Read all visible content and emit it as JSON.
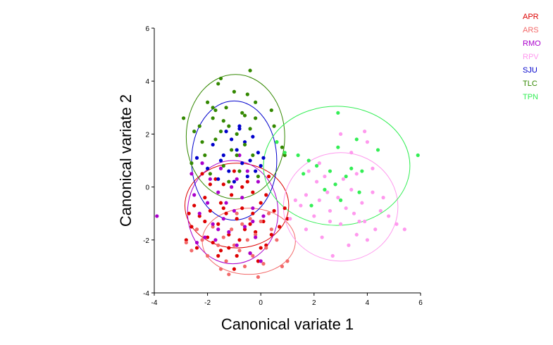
{
  "chart_data": {
    "type": "scatter",
    "title": "",
    "xlabel": "Canonical variate 1",
    "ylabel": "Canonical variate 2",
    "xlim": [
      -4,
      6
    ],
    "ylim": [
      -4,
      6
    ],
    "xticks": [
      "-4",
      "-2",
      "0",
      "2",
      "4",
      "6"
    ],
    "yticks": [
      "-4",
      "-2",
      "0",
      "2",
      "4",
      "6"
    ],
    "grid": false,
    "legend_position": "top-right",
    "series": [
      {
        "name": "APR",
        "color": "#dd0000",
        "ellipse": {
          "cx": -0.9,
          "cy": -0.7,
          "rx": 1.95,
          "ry": 1.6
        },
        "points": [
          [
            -2.8,
            -2.0
          ],
          [
            -2.6,
            -1.5
          ],
          [
            -2.5,
            -0.7
          ],
          [
            -2.4,
            -2.3
          ],
          [
            -2.3,
            -1.1
          ],
          [
            -2.2,
            0.5
          ],
          [
            -2.1,
            -0.4
          ],
          [
            -2.0,
            -1.9
          ],
          [
            -1.9,
            -0.9
          ],
          [
            -1.8,
            -2.1
          ],
          [
            -1.7,
            0.3
          ],
          [
            -1.6,
            -1.4
          ],
          [
            -1.5,
            -0.6
          ],
          [
            -1.5,
            -2.4
          ],
          [
            -1.4,
            0.1
          ],
          [
            -1.3,
            -1.0
          ],
          [
            -1.2,
            -1.8
          ],
          [
            -1.1,
            -0.3
          ],
          [
            -1.0,
            -3.1
          ],
          [
            -1.0,
            0.6
          ],
          [
            -0.9,
            -1.2
          ],
          [
            -0.8,
            -2.0
          ],
          [
            -0.7,
            -0.8
          ],
          [
            -0.6,
            -1.6
          ],
          [
            -0.5,
            0.2
          ],
          [
            -0.4,
            -2.5
          ],
          [
            -0.3,
            -1.0
          ],
          [
            -0.3,
            -0.2
          ],
          [
            -0.2,
            -1.7
          ],
          [
            -0.1,
            -2.8
          ],
          [
            0.0,
            -0.6
          ],
          [
            0.1,
            -1.3
          ],
          [
            0.2,
            -2.2
          ],
          [
            0.3,
            0.4
          ],
          [
            0.4,
            -1.8
          ],
          [
            0.5,
            -0.9
          ],
          [
            0.7,
            -1.5
          ],
          [
            0.9,
            -0.8
          ],
          [
            1.0,
            -1.2
          ],
          [
            -2.1,
            -1.3
          ],
          [
            -1.9,
            0.1
          ],
          [
            -1.6,
            -2.6
          ],
          [
            -1.2,
            -2.3
          ],
          [
            -0.7,
            0.0
          ],
          [
            -0.4,
            -1.4
          ],
          [
            0.0,
            -2.3
          ],
          [
            0.2,
            -0.3
          ],
          [
            -2.7,
            -1.0
          ],
          [
            -1.4,
            -0.8
          ],
          [
            -0.9,
            -2.6
          ]
        ]
      },
      {
        "name": "ARS",
        "color": "#f36a6a",
        "ellipse": {
          "cx": -0.45,
          "cy": -2.05,
          "rx": 1.75,
          "ry": 1.25
        },
        "points": [
          [
            -2.8,
            -2.1
          ],
          [
            -2.6,
            -2.4
          ],
          [
            -2.4,
            -1.6
          ],
          [
            -2.2,
            -2.0
          ],
          [
            -2.0,
            -2.6
          ],
          [
            -1.8,
            -1.5
          ],
          [
            -1.6,
            -2.2
          ],
          [
            -1.4,
            -1.9
          ],
          [
            -1.3,
            -2.8
          ],
          [
            -1.2,
            -3.3
          ],
          [
            -1.1,
            -1.6
          ],
          [
            -1.0,
            -2.2
          ],
          [
            -0.9,
            -1.0
          ],
          [
            -0.8,
            -2.4
          ],
          [
            -0.7,
            -1.4
          ],
          [
            -0.6,
            -3.0
          ],
          [
            -0.5,
            -2.0
          ],
          [
            -0.4,
            -1.2
          ],
          [
            -0.3,
            -2.6
          ],
          [
            -0.2,
            -1.8
          ],
          [
            0.0,
            -1.3
          ],
          [
            0.1,
            -2.9
          ],
          [
            0.2,
            -2.3
          ],
          [
            0.4,
            -1.6
          ],
          [
            0.6,
            -2.0
          ],
          [
            0.8,
            -3.0
          ],
          [
            1.0,
            -2.8
          ],
          [
            -1.5,
            -3.1
          ],
          [
            -0.1,
            -3.4
          ],
          [
            0.3,
            -1.0
          ]
        ]
      },
      {
        "name": "RMO",
        "color": "#aa00cc",
        "ellipse": {
          "cx": -1.05,
          "cy": -0.95,
          "rx": 1.7,
          "ry": 1.95
        },
        "points": [
          [
            -3.9,
            -1.1
          ],
          [
            -2.6,
            0.5
          ],
          [
            -2.5,
            -0.3
          ],
          [
            -2.3,
            -1.0
          ],
          [
            -2.2,
            0.9
          ],
          [
            -2.1,
            -1.9
          ],
          [
            -2.0,
            -0.6
          ],
          [
            -1.9,
            0.3
          ],
          [
            -1.8,
            -1.4
          ],
          [
            -1.7,
            -2.0
          ],
          [
            -1.6,
            -0.2
          ],
          [
            -1.5,
            0.7
          ],
          [
            -1.4,
            -1.2
          ],
          [
            -1.3,
            -0.6
          ],
          [
            -1.2,
            -1.7
          ],
          [
            -1.1,
            0.0
          ],
          [
            -1.0,
            -0.9
          ],
          [
            -0.9,
            -2.2
          ],
          [
            -0.8,
            1.2
          ],
          [
            -0.7,
            -0.4
          ],
          [
            -0.6,
            -1.5
          ],
          [
            -0.5,
            0.6
          ],
          [
            -0.4,
            -2.5
          ],
          [
            -0.3,
            -0.8
          ],
          [
            -0.2,
            -1.9
          ],
          [
            -0.1,
            0.2
          ],
          [
            0.0,
            -2.8
          ],
          [
            0.1,
            -1.1
          ],
          [
            -1.6,
            -1.6
          ],
          [
            -2.4,
            -2.1
          ],
          [
            -0.9,
            0.3
          ],
          [
            -0.3,
            -1.3
          ]
        ]
      },
      {
        "name": "RPV",
        "color": "#ff99ee",
        "ellipse": {
          "cx": 3.0,
          "cy": -0.75,
          "rx": 2.15,
          "ry": 2.05
        },
        "points": [
          [
            1.1,
            -1.2
          ],
          [
            1.3,
            -0.5
          ],
          [
            1.5,
            -0.7
          ],
          [
            1.7,
            -0.3
          ],
          [
            1.8,
            0.6
          ],
          [
            2.0,
            -1.1
          ],
          [
            2.1,
            0.2
          ],
          [
            2.2,
            -0.5
          ],
          [
            2.3,
            -1.9
          ],
          [
            2.4,
            0.4
          ],
          [
            2.5,
            -0.2
          ],
          [
            2.6,
            -0.9
          ],
          [
            2.7,
            -2.6
          ],
          [
            2.8,
            0.1
          ],
          [
            2.9,
            -0.4
          ],
          [
            3.0,
            -1.4
          ],
          [
            3.1,
            0.3
          ],
          [
            3.2,
            -0.8
          ],
          [
            3.3,
            -2.2
          ],
          [
            3.4,
            -0.1
          ],
          [
            3.5,
            -1.0
          ],
          [
            3.6,
            0.5
          ],
          [
            3.7,
            -1.3
          ],
          [
            3.8,
            -0.6
          ],
          [
            3.9,
            -1.3
          ],
          [
            4.0,
            -2.0
          ],
          [
            4.2,
            -0.2
          ],
          [
            4.3,
            -1.6
          ],
          [
            4.5,
            -0.9
          ],
          [
            4.6,
            -0.4
          ],
          [
            4.8,
            -1.1
          ],
          [
            5.1,
            -1.4
          ],
          [
            5.4,
            -1.6
          ],
          [
            3.9,
            2.1
          ],
          [
            3.4,
            1.3
          ],
          [
            3.0,
            2.0
          ],
          [
            2.2,
            0.9
          ],
          [
            4.0,
            1.7
          ],
          [
            1.7,
            -1.6
          ],
          [
            2.6,
            -1.3
          ],
          [
            3.6,
            -1.8
          ],
          [
            4.2,
            0.7
          ]
        ]
      },
      {
        "name": "SJU",
        "color": "#0000cc",
        "ellipse": {
          "cx": -1.0,
          "cy": 1.0,
          "rx": 1.6,
          "ry": 2.25
        },
        "points": [
          [
            -2.4,
            1.1
          ],
          [
            -2.0,
            0.7
          ],
          [
            -1.8,
            1.6
          ],
          [
            -1.6,
            0.3
          ],
          [
            -1.4,
            1.2
          ],
          [
            -1.3,
            2.1
          ],
          [
            -1.2,
            0.6
          ],
          [
            -1.1,
            1.8
          ],
          [
            -1.0,
            0.2
          ],
          [
            -0.9,
            1.4
          ],
          [
            -0.8,
            2.2
          ],
          [
            -0.7,
            0.9
          ],
          [
            -0.6,
            1.7
          ],
          [
            -0.5,
            0.4
          ],
          [
            -0.4,
            1.0
          ],
          [
            -0.3,
            1.9
          ],
          [
            -0.2,
            0.6
          ],
          [
            -0.1,
            1.3
          ],
          [
            0.0,
            0.8
          ],
          [
            -0.8,
            2.3
          ],
          [
            -1.5,
            1.0
          ],
          [
            0.1,
            1.1
          ]
        ]
      },
      {
        "name": "TLC",
        "color": "#338800",
        "ellipse": {
          "cx": -0.95,
          "cy": 1.9,
          "rx": 1.85,
          "ry": 2.35
        },
        "points": [
          [
            -2.9,
            2.6
          ],
          [
            -2.6,
            0.9
          ],
          [
            -2.3,
            2.3
          ],
          [
            -2.1,
            1.2
          ],
          [
            -2.0,
            3.2
          ],
          [
            -1.9,
            0.5
          ],
          [
            -1.8,
            2.6
          ],
          [
            -1.7,
            1.8
          ],
          [
            -1.6,
            3.9
          ],
          [
            -1.5,
            2.1
          ],
          [
            -1.4,
            0.8
          ],
          [
            -1.3,
            3.0
          ],
          [
            -1.2,
            2.3
          ],
          [
            -1.1,
            1.4
          ],
          [
            -1.0,
            3.6
          ],
          [
            -0.9,
            2.0
          ],
          [
            -0.8,
            0.6
          ],
          [
            -0.7,
            2.8
          ],
          [
            -0.6,
            1.6
          ],
          [
            -0.5,
            3.5
          ],
          [
            -0.4,
            2.2
          ],
          [
            -0.3,
            1.2
          ],
          [
            -0.2,
            3.2
          ],
          [
            -0.1,
            0.4
          ],
          [
            -0.4,
            4.4
          ],
          [
            -1.8,
            3.0
          ],
          [
            -1.4,
            2.5
          ],
          [
            -0.9,
            1.2
          ],
          [
            -2.2,
            1.7
          ],
          [
            -1.5,
            4.1
          ],
          [
            0.4,
            2.9
          ],
          [
            0.6,
            1.7
          ],
          [
            0.8,
            1.5
          ],
          [
            0.9,
            1.2
          ],
          [
            -0.6,
            2.7
          ],
          [
            -1.2,
            0.2
          ],
          [
            -0.2,
            2.6
          ],
          [
            -1.7,
            2.9
          ],
          [
            -2.5,
            2.1
          ],
          [
            0.5,
            2.3
          ]
        ]
      },
      {
        "name": "TPN",
        "color": "#33ee55",
        "ellipse": {
          "cx": 2.85,
          "cy": 0.8,
          "rx": 2.75,
          "ry": 2.25
        },
        "points": [
          [
            0.6,
            1.7
          ],
          [
            0.9,
            1.3
          ],
          [
            1.4,
            1.2
          ],
          [
            1.6,
            0.5
          ],
          [
            1.9,
            -0.7
          ],
          [
            2.1,
            0.8
          ],
          [
            2.4,
            -0.1
          ],
          [
            2.6,
            0.6
          ],
          [
            2.8,
            0.1
          ],
          [
            2.9,
            2.8
          ],
          [
            3.0,
            -0.5
          ],
          [
            3.2,
            0.4
          ],
          [
            3.4,
            0.7
          ],
          [
            3.6,
            1.8
          ],
          [
            3.7,
            -0.2
          ],
          [
            3.8,
            0.6
          ],
          [
            4.4,
            1.4
          ],
          [
            5.9,
            1.2
          ],
          [
            2.9,
            1.5
          ],
          [
            1.8,
            1.0
          ]
        ]
      }
    ]
  }
}
